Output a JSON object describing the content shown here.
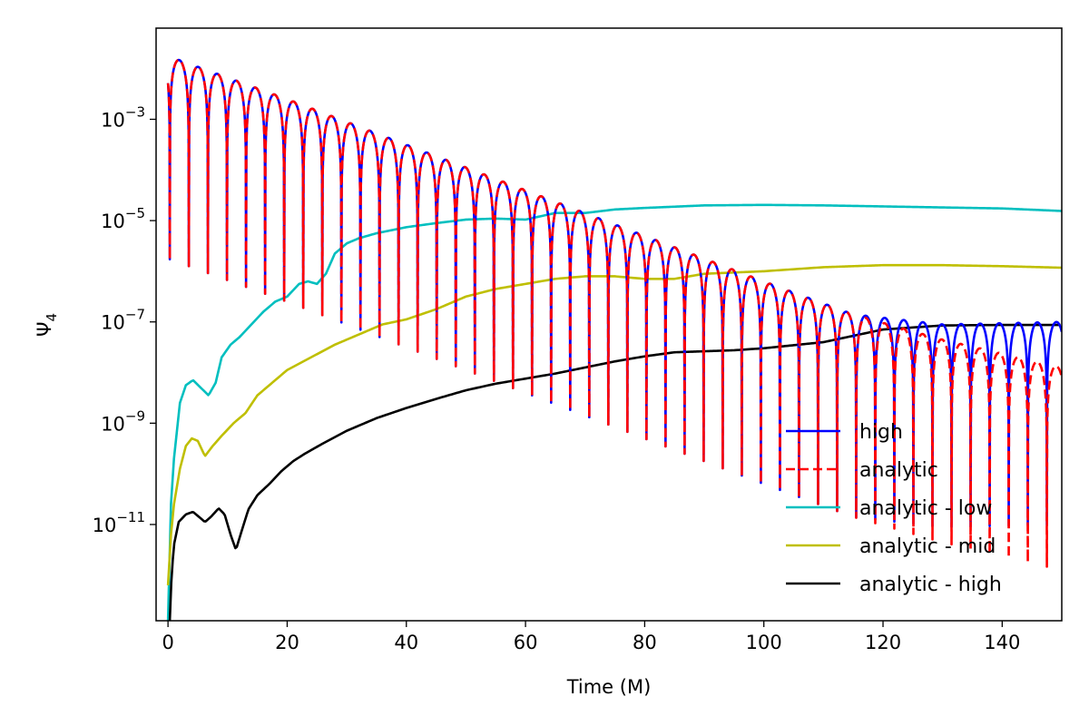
{
  "chart_data": {
    "type": "line",
    "xlabel": "Time (M)",
    "ylabel": "Ψ",
    "ylabel_subscript": "4",
    "xlim": [
      -2,
      150
    ],
    "ylim_log10": [
      -12.9,
      -1.2
    ],
    "yscale": "log",
    "xticks": [
      0,
      20,
      40,
      60,
      80,
      100,
      120,
      140
    ],
    "xtick_labels": [
      "0",
      "20",
      "40",
      "60",
      "80",
      "100",
      "120",
      "140"
    ],
    "yticks_log10": [
      -3,
      -5,
      -7,
      -9,
      -11
    ],
    "ytick_labels": [
      {
        "base": "10",
        "exp": "−3"
      },
      {
        "base": "10",
        "exp": "−5"
      },
      {
        "base": "10",
        "exp": "−7"
      },
      {
        "base": "10",
        "exp": "−9"
      },
      {
        "base": "10",
        "exp": "−11"
      }
    ],
    "legend_position": "lower-right",
    "series": [
      {
        "name": "high",
        "label": "high",
        "color": "#0000ff",
        "style": "solid",
        "description": "damped ringdown oscillation; envelope log10 ≈ -1.7 - 0.045*t, levels off near 1e-7 after t≈120",
        "envelope_log10": [
          [
            0,
            -1.75
          ],
          [
            20,
            -2.6
          ],
          [
            40,
            -3.5
          ],
          [
            60,
            -4.4
          ],
          [
            80,
            -5.3
          ],
          [
            100,
            -6.2
          ],
          [
            115,
            -6.85
          ],
          [
            130,
            -7.05
          ],
          [
            150,
            -7.0
          ]
        ],
        "period": 3.2
      },
      {
        "name": "analytic",
        "label": "analytic",
        "color": "#ff0000",
        "style": "dashed",
        "description": "analytic damped ringdown; envelope keeps decaying past t≈120",
        "envelope_log10": [
          [
            0,
            -1.75
          ],
          [
            20,
            -2.6
          ],
          [
            40,
            -3.5
          ],
          [
            60,
            -4.4
          ],
          [
            80,
            -5.3
          ],
          [
            100,
            -6.2
          ],
          [
            115,
            -6.85
          ],
          [
            130,
            -7.35
          ],
          [
            150,
            -7.9
          ]
        ],
        "period": 3.2
      },
      {
        "name": "analytic - low",
        "label": "analytic - low",
        "color": "#00bfbf",
        "style": "solid",
        "points_log10": [
          [
            0,
            -12.9
          ],
          [
            0.5,
            -10.6
          ],
          [
            1,
            -9.7
          ],
          [
            2,
            -8.6
          ],
          [
            3,
            -8.25
          ],
          [
            4.2,
            -8.15
          ],
          [
            5.5,
            -8.3
          ],
          [
            6.8,
            -8.45
          ],
          [
            8,
            -8.2
          ],
          [
            9,
            -7.7
          ],
          [
            10.5,
            -7.45
          ],
          [
            12,
            -7.3
          ],
          [
            14,
            -7.05
          ],
          [
            16,
            -6.8
          ],
          [
            18,
            -6.6
          ],
          [
            20,
            -6.5
          ],
          [
            22,
            -6.25
          ],
          [
            23.5,
            -6.2
          ],
          [
            25,
            -6.25
          ],
          [
            26.5,
            -6.05
          ],
          [
            28,
            -5.65
          ],
          [
            30,
            -5.45
          ],
          [
            32,
            -5.35
          ],
          [
            35,
            -5.25
          ],
          [
            40,
            -5.13
          ],
          [
            45,
            -5.05
          ],
          [
            50,
            -4.98
          ],
          [
            55,
            -4.96
          ],
          [
            60,
            -4.98
          ],
          [
            65,
            -4.85
          ],
          [
            70,
            -4.85
          ],
          [
            75,
            -4.78
          ],
          [
            80,
            -4.75
          ],
          [
            90,
            -4.7
          ],
          [
            100,
            -4.69
          ],
          [
            110,
            -4.7
          ],
          [
            120,
            -4.72
          ],
          [
            130,
            -4.74
          ],
          [
            140,
            -4.76
          ],
          [
            150,
            -4.81
          ]
        ]
      },
      {
        "name": "analytic - mid",
        "label": "analytic - mid",
        "color": "#bfbf00",
        "style": "solid",
        "points_log10": [
          [
            0,
            -12.2
          ],
          [
            0.5,
            -11.2
          ],
          [
            1,
            -10.6
          ],
          [
            2,
            -9.9
          ],
          [
            3,
            -9.45
          ],
          [
            4,
            -9.3
          ],
          [
            5,
            -9.35
          ],
          [
            6.2,
            -9.65
          ],
          [
            7.5,
            -9.45
          ],
          [
            9,
            -9.25
          ],
          [
            11,
            -9.0
          ],
          [
            13,
            -8.8
          ],
          [
            15,
            -8.45
          ],
          [
            18,
            -8.15
          ],
          [
            20,
            -7.95
          ],
          [
            24,
            -7.7
          ],
          [
            28,
            -7.45
          ],
          [
            32,
            -7.25
          ],
          [
            36,
            -7.05
          ],
          [
            40,
            -6.95
          ],
          [
            45,
            -6.75
          ],
          [
            50,
            -6.5
          ],
          [
            55,
            -6.35
          ],
          [
            60,
            -6.25
          ],
          [
            65,
            -6.15
          ],
          [
            70,
            -6.1
          ],
          [
            75,
            -6.1
          ],
          [
            80,
            -6.15
          ],
          [
            85,
            -6.15
          ],
          [
            90,
            -6.05
          ],
          [
            100,
            -6.0
          ],
          [
            110,
            -5.92
          ],
          [
            120,
            -5.88
          ],
          [
            130,
            -5.88
          ],
          [
            140,
            -5.9
          ],
          [
            150,
            -5.93
          ]
        ]
      },
      {
        "name": "analytic - high",
        "label": "analytic - high",
        "color": "#000000",
        "style": "solid",
        "points_log10": [
          [
            0.3,
            -12.9
          ],
          [
            0.6,
            -12.0
          ],
          [
            1,
            -11.4
          ],
          [
            1.8,
            -10.95
          ],
          [
            3,
            -10.8
          ],
          [
            4.2,
            -10.75
          ],
          [
            5.2,
            -10.85
          ],
          [
            6.2,
            -10.95
          ],
          [
            7.2,
            -10.85
          ],
          [
            8.5,
            -10.68
          ],
          [
            9.5,
            -10.8
          ],
          [
            10.5,
            -11.2
          ],
          [
            11.4,
            -11.5
          ],
          [
            12.3,
            -11.15
          ],
          [
            13.5,
            -10.7
          ],
          [
            15,
            -10.42
          ],
          [
            17,
            -10.2
          ],
          [
            19,
            -9.95
          ],
          [
            21,
            -9.75
          ],
          [
            23,
            -9.6
          ],
          [
            26,
            -9.4
          ],
          [
            30,
            -9.15
          ],
          [
            35,
            -8.9
          ],
          [
            40,
            -8.7
          ],
          [
            45,
            -8.52
          ],
          [
            50,
            -8.35
          ],
          [
            55,
            -8.22
          ],
          [
            60,
            -8.12
          ],
          [
            65,
            -8.02
          ],
          [
            70,
            -7.9
          ],
          [
            75,
            -7.78
          ],
          [
            80,
            -7.68
          ],
          [
            85,
            -7.6
          ],
          [
            90,
            -7.58
          ],
          [
            95,
            -7.56
          ],
          [
            100,
            -7.52
          ],
          [
            110,
            -7.4
          ],
          [
            120,
            -7.15
          ],
          [
            130,
            -7.07
          ],
          [
            140,
            -7.06
          ],
          [
            150,
            -7.06
          ]
        ]
      }
    ]
  }
}
